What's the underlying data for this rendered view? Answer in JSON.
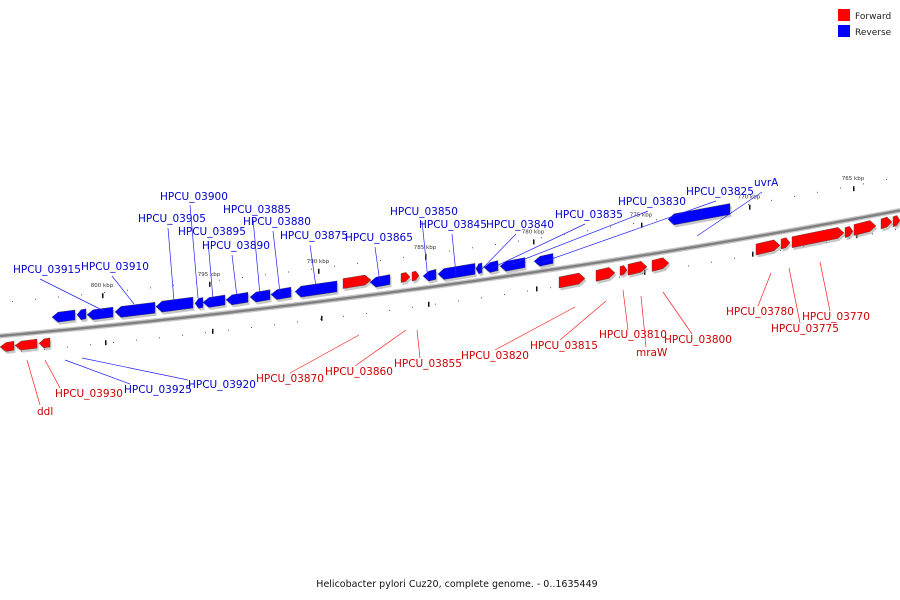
{
  "caption": "Helicobacter pylori Cuz20, complete genome. - 0..1635449",
  "legend": [
    {
      "key": "forward",
      "label": "Forward",
      "color": "#ff0000"
    },
    {
      "key": "reverse",
      "label": "Reverse",
      "color": "#0000ff"
    }
  ],
  "colors": {
    "forward": "#ff0000",
    "reverse": "#0000ff",
    "backbone": "#808080"
  },
  "scale_ticks": [
    {
      "kbp": 800,
      "label": "800 kbp"
    },
    {
      "kbp": 795,
      "label": "795 kbp"
    },
    {
      "kbp": 790,
      "label": "790 kbp"
    },
    {
      "kbp": 785,
      "label": "785 kbp"
    },
    {
      "kbp": 780,
      "label": "780 kbp"
    },
    {
      "kbp": 775,
      "label": "775 kbp"
    },
    {
      "kbp": 770,
      "label": "770 kbp"
    },
    {
      "kbp": 765,
      "label": "765 kbp"
    }
  ],
  "genes": [
    {
      "name": "ddl",
      "strand": "forward"
    },
    {
      "name": "HPCU_03930",
      "strand": "forward"
    },
    {
      "name": "HPCU_03925",
      "strand": "reverse"
    },
    {
      "name": "HPCU_03920",
      "strand": "reverse"
    },
    {
      "name": "HPCU_03915",
      "strand": "reverse"
    },
    {
      "name": "HPCU_03910",
      "strand": "reverse"
    },
    {
      "name": "HPCU_03905",
      "strand": "reverse"
    },
    {
      "name": "HPCU_03900",
      "strand": "reverse"
    },
    {
      "name": "HPCU_03895",
      "strand": "reverse"
    },
    {
      "name": "HPCU_03890",
      "strand": "reverse"
    },
    {
      "name": "HPCU_03885",
      "strand": "reverse"
    },
    {
      "name": "HPCU_03880",
      "strand": "reverse"
    },
    {
      "name": "HPCU_03875",
      "strand": "reverse"
    },
    {
      "name": "HPCU_03870",
      "strand": "forward"
    },
    {
      "name": "HPCU_03865",
      "strand": "reverse"
    },
    {
      "name": "HPCU_03860",
      "strand": "forward"
    },
    {
      "name": "HPCU_03855",
      "strand": "forward"
    },
    {
      "name": "HPCU_03850",
      "strand": "reverse"
    },
    {
      "name": "HPCU_03845",
      "strand": "reverse"
    },
    {
      "name": "HPCU_03840",
      "strand": "reverse"
    },
    {
      "name": "HPCU_03835",
      "strand": "reverse"
    },
    {
      "name": "HPCU_03830",
      "strand": "reverse"
    },
    {
      "name": "HPCU_03825",
      "strand": "reverse"
    },
    {
      "name": "uvrA",
      "strand": "reverse"
    },
    {
      "name": "HPCU_03820",
      "strand": "forward"
    },
    {
      "name": "HPCU_03815",
      "strand": "forward"
    },
    {
      "name": "HPCU_03810",
      "strand": "forward"
    },
    {
      "name": "mraW",
      "strand": "forward"
    },
    {
      "name": "HPCU_03800",
      "strand": "forward"
    },
    {
      "name": "HPCU_03780",
      "strand": "forward"
    },
    {
      "name": "HPCU_03775",
      "strand": "forward"
    },
    {
      "name": "HPCU_03770",
      "strand": "forward"
    }
  ]
}
